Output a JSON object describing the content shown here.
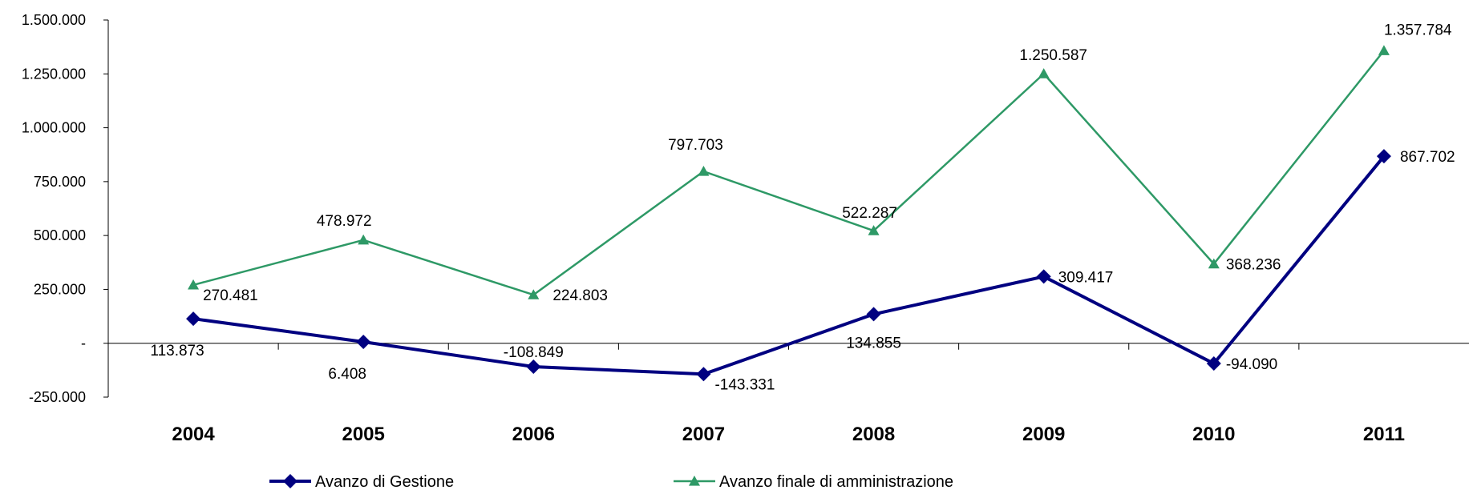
{
  "chart_data": {
    "type": "line",
    "categories": [
      "2004",
      "2005",
      "2006",
      "2007",
      "2008",
      "2009",
      "2010",
      "2011"
    ],
    "ylim": [
      -250000,
      1500000
    ],
    "yticks": [
      -250000,
      0,
      250000,
      500000,
      750000,
      1000000,
      1250000,
      1500000
    ],
    "ytick_labels": [
      "-250.000",
      "-",
      "250.000",
      "500.000",
      "750.000",
      "1.000.000",
      "1.250.000",
      "1.500.000"
    ],
    "grid": false,
    "legend_position": "bottom",
    "series": [
      {
        "name": "Avanzo di Gestione",
        "color": "#000080",
        "marker": "diamond",
        "values": [
          113873,
          6408,
          -108849,
          -143331,
          134855,
          309417,
          -94090,
          867702
        ],
        "labels": [
          "113.873",
          "6.408",
          "-108.849",
          "-143.331",
          "134.855",
          "309.417",
          "-94.090",
          "867.702"
        ]
      },
      {
        "name": "Avanzo finale di amministrazione",
        "color": "#2e9966",
        "marker": "triangle",
        "values": [
          270481,
          478972,
          224803,
          797703,
          522287,
          1250587,
          368236,
          1357784
        ],
        "labels": [
          "270.481",
          "478.972",
          "224.803",
          "797.703",
          "522.287",
          "1.250.587",
          "368.236",
          "1.357.784"
        ]
      }
    ]
  }
}
